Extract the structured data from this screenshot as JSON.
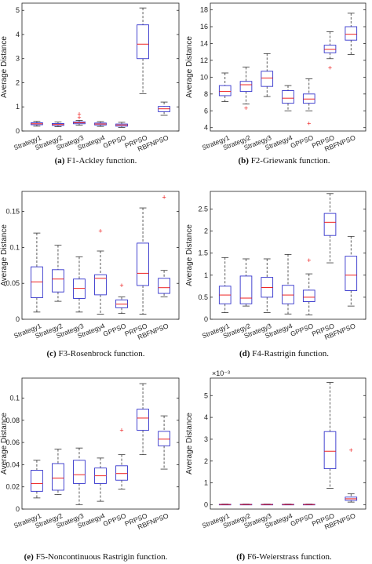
{
  "chart_data": [
    {
      "type": "box",
      "panel": "(a)",
      "caption_title": "F1-Ackley function.",
      "ylabel": "Average Distance",
      "yticks": [
        "0",
        "1",
        "2",
        "3",
        "4",
        "5"
      ],
      "ylim": [
        0,
        5.3
      ],
      "categories": [
        "Strategy1",
        "Strategy2",
        "Strategy3",
        "Strategy4",
        "GPPSO",
        "PRPSO",
        "RBFNPSO"
      ],
      "boxes": [
        {
          "min": 0.2,
          "q1": 0.26,
          "median": 0.3,
          "q3": 0.34,
          "max": 0.4,
          "outliers": []
        },
        {
          "min": 0.18,
          "q1": 0.23,
          "median": 0.27,
          "q3": 0.31,
          "max": 0.37,
          "outliers": []
        },
        {
          "min": 0.24,
          "q1": 0.3,
          "median": 0.34,
          "q3": 0.38,
          "max": 0.44,
          "outliers": [
            0.56,
            0.7
          ]
        },
        {
          "min": 0.19,
          "q1": 0.25,
          "median": 0.29,
          "q3": 0.33,
          "max": 0.39,
          "outliers": []
        },
        {
          "min": 0.15,
          "q1": 0.2,
          "median": 0.25,
          "q3": 0.29,
          "max": 0.36,
          "outliers": []
        },
        {
          "min": 1.55,
          "q1": 3.0,
          "median": 3.6,
          "q3": 4.4,
          "max": 5.1,
          "outliers": []
        },
        {
          "min": 0.65,
          "q1": 0.8,
          "median": 0.92,
          "q3": 1.02,
          "max": 1.2,
          "outliers": []
        }
      ]
    },
    {
      "type": "box",
      "panel": "(b)",
      "caption_title": "F2-Griewank function.",
      "ylabel": "Average Distance",
      "yticks": [
        "4",
        "6",
        "8",
        "10",
        "12",
        "14",
        "16",
        "18"
      ],
      "ylim": [
        3.6,
        18.8
      ],
      "categories": [
        "Strategy1",
        "Strategy2",
        "Strategy3",
        "Strategy4",
        "GPPSO",
        "PRPSO",
        "RBFNPSO"
      ],
      "boxes": [
        {
          "min": 7.1,
          "q1": 7.8,
          "median": 8.3,
          "q3": 9.0,
          "max": 10.5,
          "outliers": []
        },
        {
          "min": 6.8,
          "q1": 8.3,
          "median": 9.1,
          "q3": 9.5,
          "max": 11.2,
          "outliers": [
            6.3
          ]
        },
        {
          "min": 7.7,
          "q1": 8.9,
          "median": 9.9,
          "q3": 10.7,
          "max": 12.8,
          "outliers": []
        },
        {
          "min": 6.0,
          "q1": 6.9,
          "median": 7.5,
          "q3": 8.4,
          "max": 9.0,
          "outliers": []
        },
        {
          "min": 6.0,
          "q1": 6.9,
          "median": 7.4,
          "q3": 8.0,
          "max": 9.8,
          "outliers": [
            4.5
          ]
        },
        {
          "min": 12.2,
          "q1": 12.9,
          "median": 13.3,
          "q3": 13.8,
          "max": 15.4,
          "outliers": [
            11.1
          ]
        },
        {
          "min": 12.7,
          "q1": 14.4,
          "median": 15.1,
          "q3": 16.0,
          "max": 17.6,
          "outliers": []
        }
      ]
    },
    {
      "type": "box",
      "panel": "(c)",
      "caption_title": "F3-Rosenbrock function.",
      "ylabel": "Average Distance",
      "yticks": [
        "0",
        "0.05",
        "0.1",
        "0.15"
      ],
      "ylim": [
        0,
        0.178
      ],
      "categories": [
        "Strategy1",
        "Strategy2",
        "Strategy3",
        "Strategy4",
        "GPPSO",
        "PRPSO",
        "RBFNPSO"
      ],
      "boxes": [
        {
          "min": 0.01,
          "q1": 0.03,
          "median": 0.052,
          "q3": 0.073,
          "max": 0.12,
          "outliers": []
        },
        {
          "min": 0.025,
          "q1": 0.038,
          "median": 0.056,
          "q3": 0.069,
          "max": 0.103,
          "outliers": []
        },
        {
          "min": 0.01,
          "q1": 0.029,
          "median": 0.043,
          "q3": 0.056,
          "max": 0.087,
          "outliers": []
        },
        {
          "min": 0.007,
          "q1": 0.034,
          "median": 0.057,
          "q3": 0.062,
          "max": 0.095,
          "outliers": [
            0.123
          ]
        },
        {
          "min": 0.008,
          "q1": 0.016,
          "median": 0.021,
          "q3": 0.027,
          "max": 0.031,
          "outliers": [
            0.047
          ]
        },
        {
          "min": 0.007,
          "q1": 0.047,
          "median": 0.064,
          "q3": 0.106,
          "max": 0.155,
          "outliers": []
        },
        {
          "min": 0.031,
          "q1": 0.036,
          "median": 0.044,
          "q3": 0.057,
          "max": 0.068,
          "outliers": [
            0.17
          ]
        }
      ]
    },
    {
      "type": "box",
      "panel": "(d)",
      "caption_title": "F4-Rastrigin function.",
      "ylabel": "Average Distance",
      "yticks": [
        "0",
        "0.5",
        "1",
        "1.5",
        "2",
        "2.5"
      ],
      "ylim": [
        0,
        2.9
      ],
      "categories": [
        "Strategy1",
        "Strategy2",
        "Strategy3",
        "Strategy4",
        "GPPSO",
        "PRPSO",
        "RBFNPSO"
      ],
      "boxes": [
        {
          "min": 0.15,
          "q1": 0.35,
          "median": 0.55,
          "q3": 0.75,
          "max": 1.4,
          "outliers": []
        },
        {
          "min": 0.3,
          "q1": 0.35,
          "median": 0.48,
          "q3": 0.98,
          "max": 1.37,
          "outliers": []
        },
        {
          "min": 0.15,
          "q1": 0.5,
          "median": 0.72,
          "q3": 0.95,
          "max": 1.37,
          "outliers": []
        },
        {
          "min": 0.12,
          "q1": 0.35,
          "median": 0.55,
          "q3": 0.77,
          "max": 1.47,
          "outliers": []
        },
        {
          "min": 0.1,
          "q1": 0.4,
          "median": 0.5,
          "q3": 0.66,
          "max": 1.03,
          "outliers": [
            1.33
          ]
        },
        {
          "min": 1.28,
          "q1": 1.9,
          "median": 2.2,
          "q3": 2.4,
          "max": 2.85,
          "outliers": []
        },
        {
          "min": 0.3,
          "q1": 0.65,
          "median": 1.0,
          "q3": 1.43,
          "max": 1.88,
          "outliers": []
        }
      ]
    },
    {
      "type": "box",
      "panel": "(e)",
      "caption_title": "F5-Noncontinuous Rastrigin function.",
      "ylabel": "Average Distance",
      "yticks": [
        "0",
        "0.02",
        "0.04",
        "0.06",
        "0.08",
        "0.1"
      ],
      "ylim": [
        0,
        0.118
      ],
      "categories": [
        "Strategy1",
        "Strategy2",
        "Strategy3",
        "Strategy4",
        "GPPSO",
        "PRPSO",
        "RBFNPSO"
      ],
      "boxes": [
        {
          "min": 0.01,
          "q1": 0.016,
          "median": 0.023,
          "q3": 0.035,
          "max": 0.044,
          "outliers": []
        },
        {
          "min": 0.013,
          "q1": 0.017,
          "median": 0.028,
          "q3": 0.041,
          "max": 0.054,
          "outliers": []
        },
        {
          "min": 0.004,
          "q1": 0.023,
          "median": 0.031,
          "q3": 0.044,
          "max": 0.055,
          "outliers": []
        },
        {
          "min": 0.007,
          "q1": 0.023,
          "median": 0.03,
          "q3": 0.037,
          "max": 0.046,
          "outliers": []
        },
        {
          "min": 0.018,
          "q1": 0.026,
          "median": 0.032,
          "q3": 0.039,
          "max": 0.049,
          "outliers": [
            0.071
          ]
        },
        {
          "min": 0.049,
          "q1": 0.071,
          "median": 0.082,
          "q3": 0.09,
          "max": 0.113,
          "outliers": []
        },
        {
          "min": 0.036,
          "q1": 0.057,
          "median": 0.063,
          "q3": 0.07,
          "max": 0.084,
          "outliers": []
        }
      ]
    },
    {
      "type": "box",
      "panel": "(f)",
      "caption_title": "F6-Weierstrass function.",
      "ylabel": "Average Distance",
      "exponent": "×10⁻³",
      "yticks": [
        "0",
        "1",
        "2",
        "3",
        "4",
        "5"
      ],
      "ylim": [
        -0.2,
        5.8
      ],
      "categories": [
        "Strategy1",
        "Strategy2",
        "Strategy3",
        "Strategy4",
        "GPPSO",
        "PRPSO",
        "RBFNPSO"
      ],
      "boxes": [
        {
          "min": 0.0,
          "q1": 0.0,
          "median": 0.01,
          "q3": 0.02,
          "max": 0.03,
          "outliers": []
        },
        {
          "min": 0.0,
          "q1": 0.0,
          "median": 0.01,
          "q3": 0.02,
          "max": 0.03,
          "outliers": []
        },
        {
          "min": 0.0,
          "q1": 0.0,
          "median": 0.01,
          "q3": 0.02,
          "max": 0.03,
          "outliers": []
        },
        {
          "min": 0.0,
          "q1": 0.0,
          "median": 0.01,
          "q3": 0.02,
          "max": 0.03,
          "outliers": []
        },
        {
          "min": 0.0,
          "q1": 0.0,
          "median": 0.01,
          "q3": 0.02,
          "max": 0.03,
          "outliers": []
        },
        {
          "min": 0.75,
          "q1": 1.65,
          "median": 2.45,
          "q3": 3.35,
          "max": 5.6,
          "outliers": []
        },
        {
          "min": 0.12,
          "q1": 0.2,
          "median": 0.27,
          "q3": 0.35,
          "max": 0.5,
          "outliers": [
            2.5
          ]
        }
      ]
    }
  ],
  "colors": {
    "box": "#3333cc",
    "median": "#ee2222",
    "whisker": "#333333",
    "outlier": "#ee2222",
    "axis": "#222222"
  }
}
